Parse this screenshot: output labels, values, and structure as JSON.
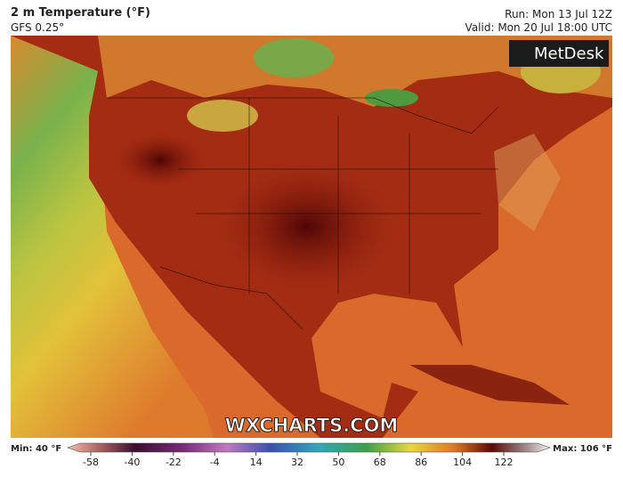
{
  "header": {
    "title": "2 m Temperature (°F)",
    "model": "GFS 0.25°",
    "run": "Run: Mon 13 Jul 12Z",
    "valid": "Valid: Mon 20 Jul 18:00 UTC"
  },
  "map": {
    "logo": "MetDesk",
    "watermark": "WXCHARTS.COM"
  },
  "colorbar": {
    "min_label": "Min: 40 °F",
    "max_label": "Max: 106 °F",
    "ticks": [
      -58,
      -40,
      -22,
      -4,
      14,
      32,
      50,
      68,
      86,
      104,
      122
    ]
  }
}
